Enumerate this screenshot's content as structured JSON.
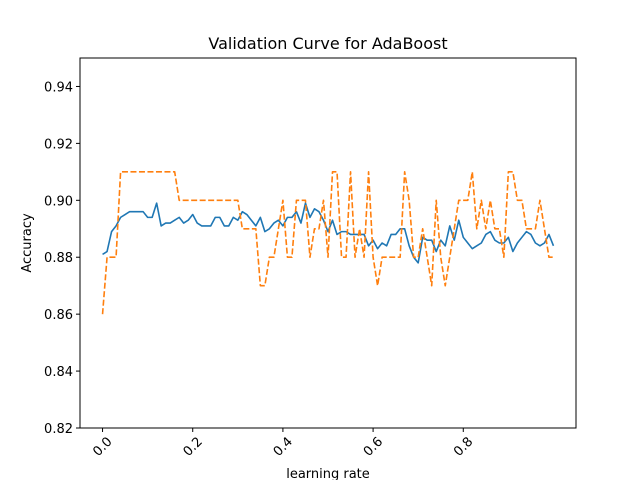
{
  "chart_data": {
    "type": "line",
    "title": "Validation Curve for AdaBoost",
    "xlabel": "learning rate",
    "ylabel": "Accuracy",
    "xlim": [
      -0.05,
      1.05
    ],
    "ylim": [
      0.82,
      0.95
    ],
    "xticks": [
      0.0,
      0.2,
      0.4,
      0.6,
      0.8
    ],
    "xtick_labels": [
      "0.0",
      "0.2",
      "0.4",
      "0.6",
      "0.8"
    ],
    "yticks": [
      0.82,
      0.84,
      0.86,
      0.88,
      0.9,
      0.92,
      0.94
    ],
    "ytick_labels": [
      "0.82",
      "0.84",
      "0.86",
      "0.88",
      "0.90",
      "0.92",
      "0.94"
    ],
    "x_tick_rotation_deg": 45,
    "grid": false,
    "legend": "none",
    "series": [
      {
        "style": "solid",
        "color": "#1f77b4",
        "points": [
          [
            0.0,
            0.881
          ],
          [
            0.01,
            0.882
          ],
          [
            0.02,
            0.889
          ],
          [
            0.03,
            0.891
          ],
          [
            0.04,
            0.894
          ],
          [
            0.05,
            0.895
          ],
          [
            0.06,
            0.896
          ],
          [
            0.07,
            0.896
          ],
          [
            0.08,
            0.896
          ],
          [
            0.09,
            0.896
          ],
          [
            0.1,
            0.894
          ],
          [
            0.11,
            0.894
          ],
          [
            0.12,
            0.899
          ],
          [
            0.13,
            0.891
          ],
          [
            0.14,
            0.892
          ],
          [
            0.15,
            0.892
          ],
          [
            0.16,
            0.893
          ],
          [
            0.17,
            0.894
          ],
          [
            0.18,
            0.892
          ],
          [
            0.19,
            0.893
          ],
          [
            0.2,
            0.895
          ],
          [
            0.21,
            0.892
          ],
          [
            0.22,
            0.891
          ],
          [
            0.23,
            0.891
          ],
          [
            0.24,
            0.891
          ],
          [
            0.25,
            0.894
          ],
          [
            0.26,
            0.894
          ],
          [
            0.27,
            0.891
          ],
          [
            0.28,
            0.891
          ],
          [
            0.29,
            0.894
          ],
          [
            0.3,
            0.893
          ],
          [
            0.31,
            0.896
          ],
          [
            0.32,
            0.895
          ],
          [
            0.33,
            0.893
          ],
          [
            0.34,
            0.891
          ],
          [
            0.35,
            0.894
          ],
          [
            0.36,
            0.889
          ],
          [
            0.37,
            0.89
          ],
          [
            0.38,
            0.892
          ],
          [
            0.39,
            0.893
          ],
          [
            0.4,
            0.891
          ],
          [
            0.41,
            0.894
          ],
          [
            0.42,
            0.894
          ],
          [
            0.43,
            0.896
          ],
          [
            0.44,
            0.892
          ],
          [
            0.45,
            0.899
          ],
          [
            0.46,
            0.894
          ],
          [
            0.47,
            0.897
          ],
          [
            0.48,
            0.896
          ],
          [
            0.49,
            0.893
          ],
          [
            0.5,
            0.889
          ],
          [
            0.51,
            0.893
          ],
          [
            0.52,
            0.888
          ],
          [
            0.53,
            0.889
          ],
          [
            0.54,
            0.889
          ],
          [
            0.55,
            0.888
          ],
          [
            0.56,
            0.888
          ],
          [
            0.57,
            0.888
          ],
          [
            0.58,
            0.888
          ],
          [
            0.59,
            0.884
          ],
          [
            0.6,
            0.886
          ],
          [
            0.61,
            0.883
          ],
          [
            0.62,
            0.885
          ],
          [
            0.63,
            0.884
          ],
          [
            0.64,
            0.888
          ],
          [
            0.65,
            0.888
          ],
          [
            0.66,
            0.89
          ],
          [
            0.67,
            0.89
          ],
          [
            0.68,
            0.884
          ],
          [
            0.69,
            0.88
          ],
          [
            0.7,
            0.878
          ],
          [
            0.71,
            0.887
          ],
          [
            0.72,
            0.886
          ],
          [
            0.73,
            0.886
          ],
          [
            0.74,
            0.882
          ],
          [
            0.75,
            0.886
          ],
          [
            0.76,
            0.884
          ],
          [
            0.77,
            0.891
          ],
          [
            0.78,
            0.886
          ],
          [
            0.79,
            0.893
          ],
          [
            0.8,
            0.887
          ],
          [
            0.81,
            0.885
          ],
          [
            0.82,
            0.883
          ],
          [
            0.83,
            0.884
          ],
          [
            0.84,
            0.885
          ],
          [
            0.85,
            0.888
          ],
          [
            0.86,
            0.889
          ],
          [
            0.87,
            0.886
          ],
          [
            0.88,
            0.885
          ],
          [
            0.89,
            0.885
          ],
          [
            0.9,
            0.887
          ],
          [
            0.91,
            0.882
          ],
          [
            0.92,
            0.885
          ],
          [
            0.93,
            0.887
          ],
          [
            0.94,
            0.889
          ],
          [
            0.95,
            0.888
          ],
          [
            0.96,
            0.885
          ],
          [
            0.97,
            0.884
          ],
          [
            0.98,
            0.885
          ],
          [
            0.99,
            0.888
          ],
          [
            1.0,
            0.884
          ]
        ]
      },
      {
        "style": "dashed",
        "color": "#ff7f0e",
        "points": [
          [
            0.0,
            0.86
          ],
          [
            0.01,
            0.88
          ],
          [
            0.02,
            0.88
          ],
          [
            0.03,
            0.88
          ],
          [
            0.04,
            0.91
          ],
          [
            0.05,
            0.91
          ],
          [
            0.06,
            0.91
          ],
          [
            0.07,
            0.91
          ],
          [
            0.08,
            0.91
          ],
          [
            0.09,
            0.91
          ],
          [
            0.1,
            0.91
          ],
          [
            0.11,
            0.91
          ],
          [
            0.12,
            0.91
          ],
          [
            0.13,
            0.91
          ],
          [
            0.14,
            0.91
          ],
          [
            0.15,
            0.91
          ],
          [
            0.16,
            0.91
          ],
          [
            0.17,
            0.9
          ],
          [
            0.18,
            0.9
          ],
          [
            0.19,
            0.9
          ],
          [
            0.2,
            0.9
          ],
          [
            0.21,
            0.9
          ],
          [
            0.22,
            0.9
          ],
          [
            0.23,
            0.9
          ],
          [
            0.24,
            0.9
          ],
          [
            0.25,
            0.9
          ],
          [
            0.26,
            0.9
          ],
          [
            0.27,
            0.9
          ],
          [
            0.28,
            0.9
          ],
          [
            0.29,
            0.9
          ],
          [
            0.3,
            0.9
          ],
          [
            0.31,
            0.89
          ],
          [
            0.32,
            0.89
          ],
          [
            0.33,
            0.89
          ],
          [
            0.34,
            0.89
          ],
          [
            0.35,
            0.87
          ],
          [
            0.36,
            0.87
          ],
          [
            0.37,
            0.88
          ],
          [
            0.38,
            0.88
          ],
          [
            0.39,
            0.89
          ],
          [
            0.4,
            0.9
          ],
          [
            0.41,
            0.88
          ],
          [
            0.42,
            0.88
          ],
          [
            0.43,
            0.9
          ],
          [
            0.44,
            0.9
          ],
          [
            0.45,
            0.9
          ],
          [
            0.46,
            0.88
          ],
          [
            0.47,
            0.89
          ],
          [
            0.48,
            0.89
          ],
          [
            0.49,
            0.9
          ],
          [
            0.5,
            0.88
          ],
          [
            0.51,
            0.91
          ],
          [
            0.52,
            0.91
          ],
          [
            0.53,
            0.88
          ],
          [
            0.54,
            0.88
          ],
          [
            0.55,
            0.91
          ],
          [
            0.56,
            0.88
          ],
          [
            0.57,
            0.89
          ],
          [
            0.58,
            0.88
          ],
          [
            0.59,
            0.91
          ],
          [
            0.6,
            0.88
          ],
          [
            0.61,
            0.87
          ],
          [
            0.62,
            0.88
          ],
          [
            0.63,
            0.88
          ],
          [
            0.64,
            0.88
          ],
          [
            0.65,
            0.88
          ],
          [
            0.66,
            0.88
          ],
          [
            0.67,
            0.91
          ],
          [
            0.68,
            0.9
          ],
          [
            0.69,
            0.88
          ],
          [
            0.7,
            0.88
          ],
          [
            0.71,
            0.89
          ],
          [
            0.72,
            0.88
          ],
          [
            0.73,
            0.87
          ],
          [
            0.74,
            0.9
          ],
          [
            0.75,
            0.88
          ],
          [
            0.76,
            0.87
          ],
          [
            0.77,
            0.88
          ],
          [
            0.78,
            0.89
          ],
          [
            0.79,
            0.9
          ],
          [
            0.8,
            0.9
          ],
          [
            0.81,
            0.9
          ],
          [
            0.82,
            0.91
          ],
          [
            0.83,
            0.89
          ],
          [
            0.84,
            0.9
          ],
          [
            0.85,
            0.89
          ],
          [
            0.86,
            0.9
          ],
          [
            0.87,
            0.89
          ],
          [
            0.88,
            0.89
          ],
          [
            0.89,
            0.88
          ],
          [
            0.9,
            0.91
          ],
          [
            0.91,
            0.91
          ],
          [
            0.92,
            0.9
          ],
          [
            0.93,
            0.9
          ],
          [
            0.94,
            0.89
          ],
          [
            0.95,
            0.89
          ],
          [
            0.96,
            0.89
          ],
          [
            0.97,
            0.9
          ],
          [
            0.98,
            0.89
          ],
          [
            0.99,
            0.88
          ],
          [
            1.0,
            0.88
          ]
        ]
      }
    ]
  }
}
